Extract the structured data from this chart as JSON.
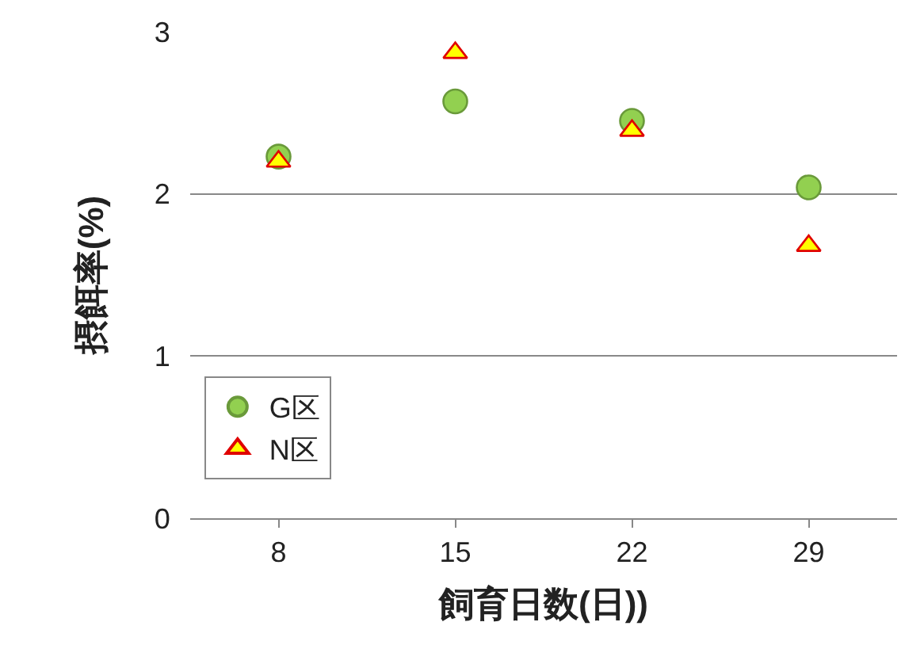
{
  "chart_data": {
    "type": "scatter",
    "xlabel": "飼育日数(日))",
    "ylabel": "摂餌率(%)",
    "categories": [
      "8",
      "15",
      "22",
      "29"
    ],
    "series": [
      {
        "name": "G区",
        "color": "#92d050",
        "marker": "circle",
        "values": [
          2.23,
          2.57,
          2.45,
          2.04
        ]
      },
      {
        "name": "N区",
        "color": "#ffff00",
        "marker": "triangle",
        "values": [
          2.2,
          2.87,
          2.39,
          1.68
        ]
      }
    ],
    "ylim": [
      0,
      3
    ],
    "yticks": [
      0,
      1,
      2,
      3
    ],
    "grid": "y",
    "legend": "bottom left"
  }
}
